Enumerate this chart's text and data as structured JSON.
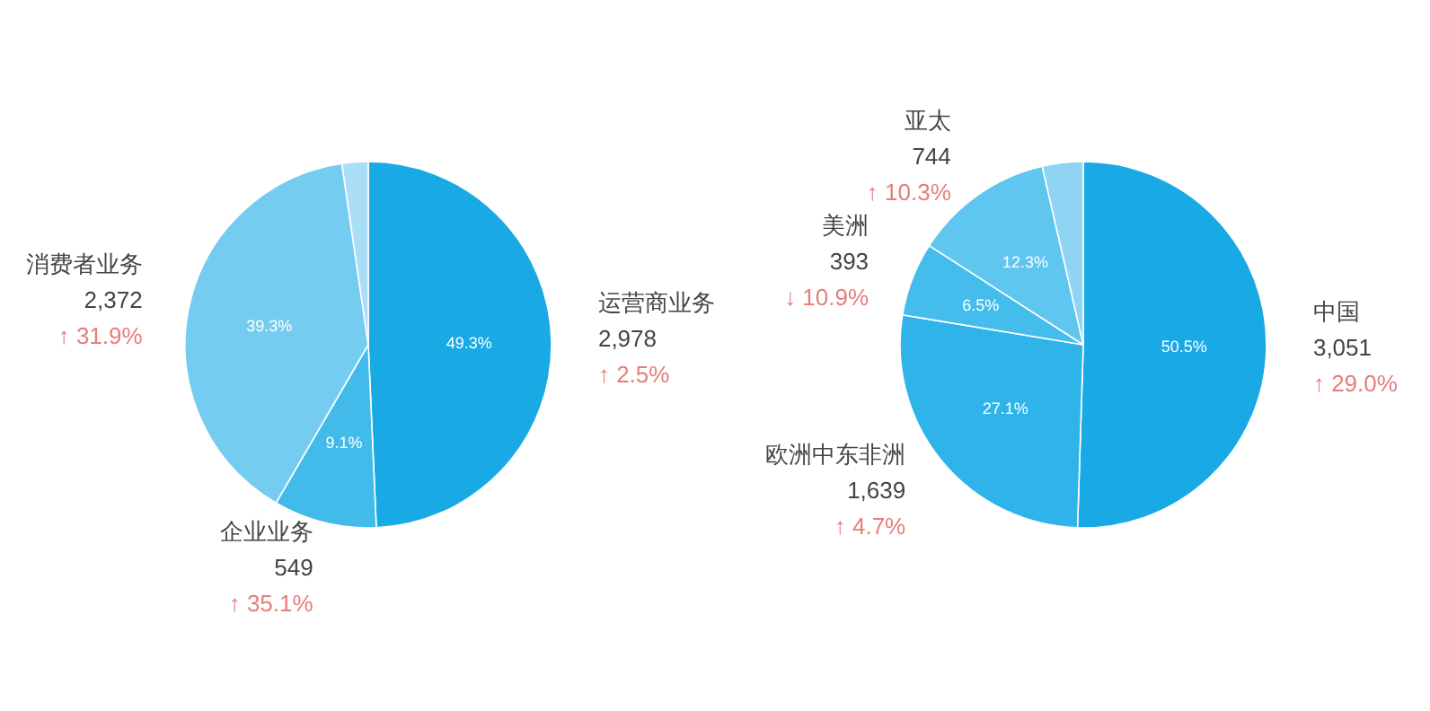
{
  "chart_data": [
    {
      "type": "pie",
      "categories": [
        "运营商业务",
        "企业业务",
        "消费者业务",
        null
      ],
      "values": [
        49.3,
        9.1,
        39.3,
        2.3
      ],
      "colors": [
        "#19a9e5",
        "#42bbeb",
        "#74cdf1",
        "#a9def6"
      ],
      "value_labels": [
        "49.3%",
        "9.1%",
        "39.3%",
        null
      ],
      "annotations": [
        "2,978",
        "↑ 2.5%",
        "549",
        "↑ 35.1%",
        "2,372",
        "↑ 31.9%"
      ]
    },
    {
      "type": "pie",
      "categories": [
        "中国",
        "欧洲中东非洲",
        "美洲",
        "亚太",
        null
      ],
      "values": [
        50.5,
        27.1,
        6.5,
        12.3,
        3.6
      ],
      "colors": [
        "#19a9e5",
        "#2fb4e9",
        "#44bdec",
        "#5ec6ef",
        "#8fd5f3"
      ],
      "value_labels": [
        "50.5%",
        "27.1%",
        "6.5%",
        "12.3%",
        null
      ],
      "annotations": [
        "3,051",
        "↑ 29.0%",
        "1,639",
        "↑ 4.7%",
        "393",
        "↓ 10.9%",
        "744",
        "↑ 10.3%"
      ]
    }
  ]
}
